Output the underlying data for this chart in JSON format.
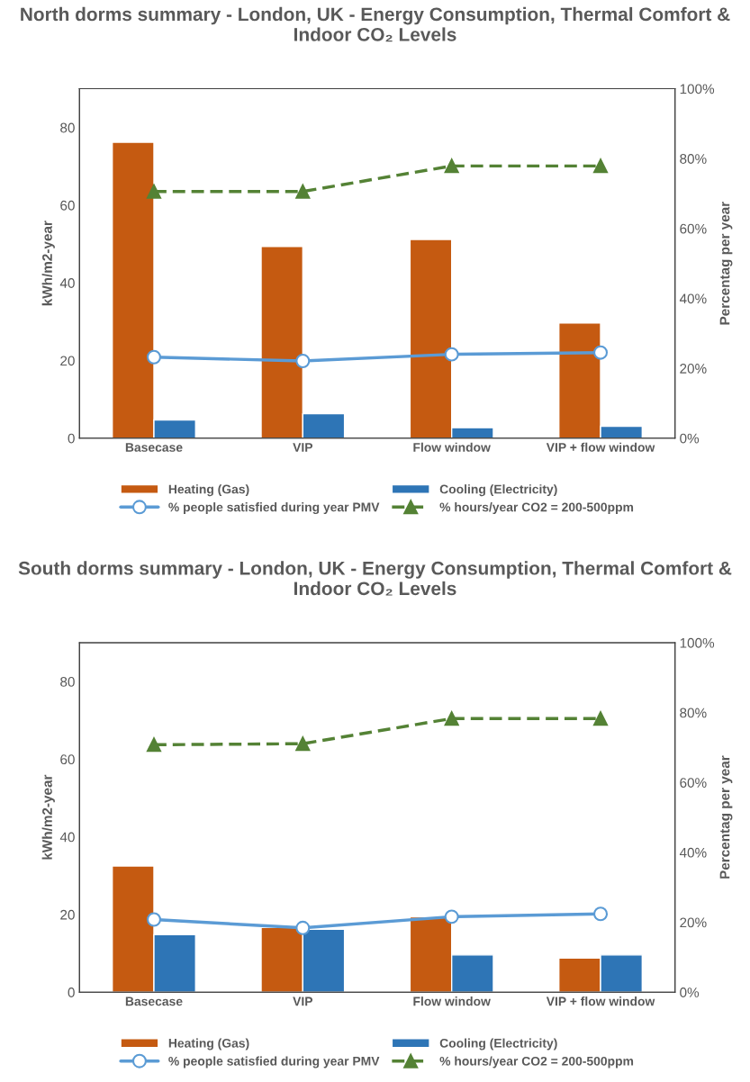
{
  "chart_data": [
    {
      "type": "bar",
      "title": "North dorms summary - London, UK - Energy Consumption, Thermal Comfort & Indoor CO₂ Levels",
      "ylabel": "kWh/m2-year",
      "y2label": "Percentag per year",
      "categories": [
        "Basecase",
        "VIP",
        "Flow window",
        "VIP + flow window"
      ],
      "ylim": [
        0,
        90
      ],
      "yticks": [
        0,
        20,
        40,
        60,
        80
      ],
      "y2lim": [
        0,
        100
      ],
      "y2ticks": [
        {
          "value": 0,
          "label": "0%"
        },
        {
          "value": 20,
          "label": "20%"
        },
        {
          "value": 40,
          "label": "40%"
        },
        {
          "value": 60,
          "label": "60%"
        },
        {
          "value": 80,
          "label": "80%"
        },
        {
          "value": 100,
          "label": "100%"
        }
      ],
      "grid": false,
      "legend": "bottom",
      "series": [
        {
          "name": "Heating (Gas)",
          "color": "#c55a11",
          "values": [
            76.2,
            49.4,
            51.2,
            29.7
          ]
        },
        {
          "name": "Cooling (Electricity)",
          "color": "#2e75b6",
          "values": [
            4.7,
            6.3,
            2.7,
            3.1
          ]
        },
        {
          "name": "% people satisfied during year PMV",
          "type": "line",
          "axis": "y2",
          "color": "#5b9bd5",
          "marker": "circle",
          "line_style": "solid",
          "values": [
            23.2,
            22.1,
            24.0,
            24.5
          ]
        },
        {
          "name": "% hours/year CO2 = 200-500ppm",
          "type": "line",
          "axis": "y2",
          "color": "#548235",
          "marker": "triangle",
          "line_style": "dashed",
          "values": [
            70.6,
            70.6,
            77.9,
            77.9
          ]
        }
      ]
    },
    {
      "type": "bar",
      "title": "South dorms summary - London, UK - Energy Consumption, Thermal Comfort & Indoor CO₂ Levels",
      "ylabel": "kWh/m2-year",
      "y2label": "Percentag per year",
      "categories": [
        "Basecase",
        "VIP",
        "Flow window",
        "VIP + flow window"
      ],
      "ylim": [
        0,
        90
      ],
      "yticks": [
        0,
        20,
        40,
        60,
        80
      ],
      "y2lim": [
        0,
        100
      ],
      "y2ticks": [
        {
          "value": 0,
          "label": "0%"
        },
        {
          "value": 20,
          "label": "20%"
        },
        {
          "value": 40,
          "label": "40%"
        },
        {
          "value": 60,
          "label": "60%"
        },
        {
          "value": 80,
          "label": "80%"
        },
        {
          "value": 100,
          "label": "100%"
        }
      ],
      "grid": false,
      "legend": "bottom",
      "series": [
        {
          "name": "Heating (Gas)",
          "color": "#c55a11",
          "values": [
            32.5,
            16.7,
            19.4,
            8.8
          ]
        },
        {
          "name": "Cooling (Electricity)",
          "color": "#2e75b6",
          "values": [
            14.8,
            16.2,
            9.6,
            9.6
          ]
        },
        {
          "name": "% people satisfied during year PMV",
          "type": "line",
          "axis": "y2",
          "color": "#5b9bd5",
          "marker": "circle",
          "line_style": "solid",
          "values": [
            20.8,
            18.4,
            21.6,
            22.4
          ]
        },
        {
          "name": "% hours/year CO2 = 200-500ppm",
          "type": "line",
          "axis": "y2",
          "color": "#548235",
          "marker": "triangle",
          "line_style": "dashed",
          "values": [
            70.8,
            71.1,
            78.3,
            78.3
          ]
        }
      ]
    }
  ]
}
